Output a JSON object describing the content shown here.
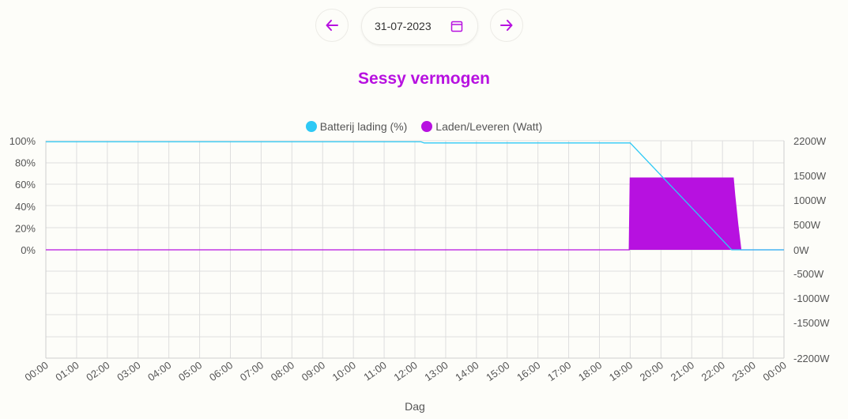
{
  "date_nav": {
    "date": "31-07-2023",
    "prev_icon": "arrow-left-icon",
    "next_icon": "arrow-right-icon",
    "calendar_icon": "calendar-icon"
  },
  "colors": {
    "accent": "#b711e0",
    "battery": "#2ec9f5",
    "power": "#b711e0"
  },
  "chart_data": {
    "type": "line",
    "title": "Sessy vermogen",
    "xlabel": "Dag",
    "x_ticks": [
      "00:00",
      "01:00",
      "02:00",
      "03:00",
      "04:00",
      "05:00",
      "06:00",
      "07:00",
      "08:00",
      "09:00",
      "10:00",
      "11:00",
      "12:00",
      "13:00",
      "14:00",
      "15:00",
      "16:00",
      "17:00",
      "18:00",
      "19:00",
      "20:00",
      "21:00",
      "22:00",
      "23:00",
      "00:00"
    ],
    "y_left_ticks": [
      "100%",
      "80%",
      "60%",
      "40%",
      "20%",
      "0%"
    ],
    "y_right_ticks": [
      "2200W",
      "1500W",
      "1000W",
      "500W",
      "0W",
      "-500W",
      "-1000W",
      "-1500W",
      "-2200W"
    ],
    "y_left_range": [
      -100,
      100
    ],
    "y_right_range": [
      -2200,
      2200
    ],
    "legend_position": "top-center",
    "grid": true,
    "series": [
      {
        "name": "Batterij lading (%)",
        "axis": "left",
        "color": "#2ec9f5",
        "points": [
          [
            0,
            99
          ],
          [
            12.2,
            99
          ],
          [
            12.3,
            98
          ],
          [
            19.0,
            98
          ],
          [
            22.3,
            0
          ],
          [
            24,
            0
          ]
        ]
      },
      {
        "name": "Laden/Leveren (Watt)",
        "axis": "right",
        "color": "#b711e0",
        "fill": true,
        "points": [
          [
            0,
            0
          ],
          [
            18.97,
            0
          ],
          [
            19.0,
            1450
          ],
          [
            22.35,
            1450
          ],
          [
            22.4,
            1100
          ],
          [
            22.5,
            500
          ],
          [
            22.6,
            0
          ],
          [
            24,
            0
          ]
        ]
      }
    ]
  }
}
